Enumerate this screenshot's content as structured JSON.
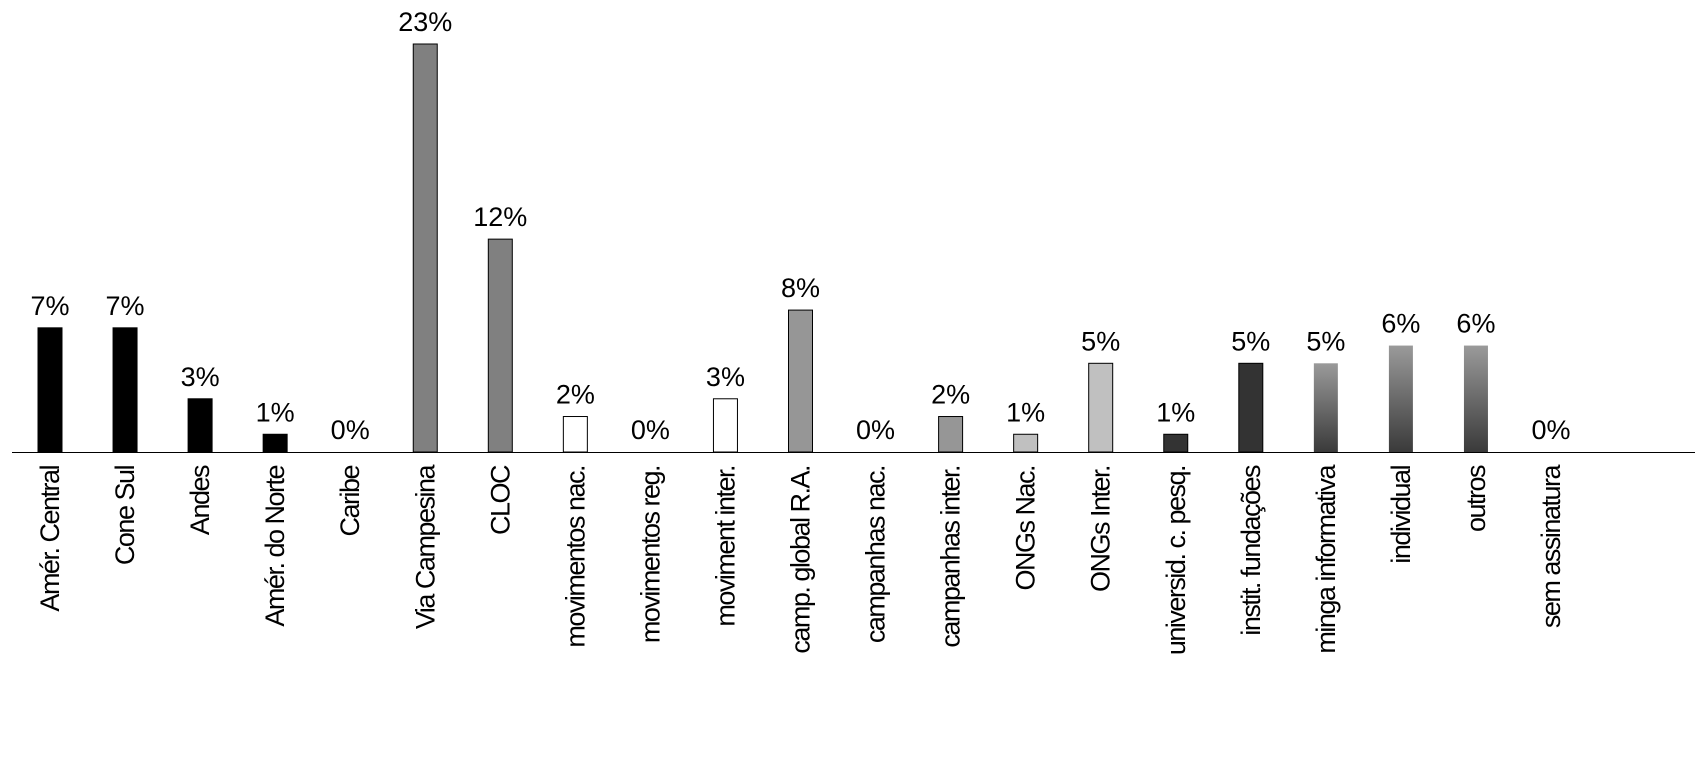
{
  "chart_data": {
    "type": "bar",
    "categories": [
      "Amér. Central",
      "Cone Sul",
      "Andes",
      "Amér. do Norte",
      "Caribe",
      "Via Campesina",
      "CLOC",
      "movimentos nac.",
      "movimentos reg.",
      "moviment inter.",
      "camp. global R.A.",
      "campanhas nac.",
      "campanhas inter.",
      "ONGs Nac.",
      "ONGs Inter.",
      "universid. c. pesq.",
      "instit. fundações",
      "minga informativa",
      "individual",
      "outros",
      "sem assinatura"
    ],
    "values": [
      7,
      7,
      3,
      1,
      0,
      23,
      12,
      2,
      0,
      3,
      8,
      0,
      2,
      1,
      5,
      1,
      5,
      5,
      6,
      6,
      0
    ],
    "data_labels": [
      "7%",
      "7%",
      "3%",
      "1%",
      "0%",
      "23%",
      "12%",
      "2%",
      "0%",
      "3%",
      "8%",
      "0%",
      "2%",
      "1%",
      "5%",
      "1%",
      "5%",
      "5%",
      "6%",
      "6%",
      "0%"
    ],
    "bar_colors": [
      "#000000",
      "#000000",
      "#000000",
      "#000000",
      "#000000",
      "#808080",
      "#808080",
      "#ffffff",
      "#ffffff",
      "#ffffff",
      "#969696",
      "#969696",
      "#969696",
      "#c0c0c0",
      "#c0c0c0",
      "#333333",
      "#333333",
      "gradient",
      "gradient",
      "gradient",
      "#333333"
    ],
    "gradient_colors": [
      "#9a9a9a",
      "#3a3a3a"
    ],
    "ylim": [
      0,
      23
    ],
    "grid": false,
    "legend": "none",
    "title": "",
    "xlabel": "",
    "ylabel": ""
  }
}
